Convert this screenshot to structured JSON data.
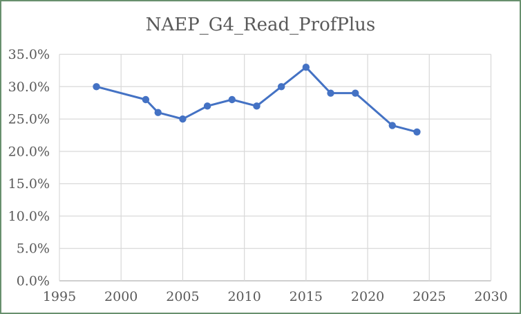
{
  "window": {
    "background": "#ffffff",
    "border_color": "#68906d"
  },
  "chart_data": {
    "type": "line",
    "title": "NAEP_G4_Read_ProfPlus",
    "x": [
      1998,
      2002,
      2003,
      2005,
      2007,
      2009,
      2011,
      2013,
      2015,
      2017,
      2019,
      2022,
      2024
    ],
    "values": [
      30,
      28,
      26,
      25,
      27,
      28,
      27,
      30,
      33,
      29,
      29,
      24,
      23
    ],
    "unit": "%",
    "xlim": [
      1995,
      2030
    ],
    "ylim": [
      0,
      35
    ],
    "x_tick_labels": [
      "1995",
      "2000",
      "2005",
      "2010",
      "2015",
      "2020",
      "2025",
      "2030"
    ],
    "x_tick_values": [
      1995,
      2000,
      2005,
      2010,
      2015,
      2020,
      2025,
      2030
    ],
    "y_tick_labels": [
      "0.0%",
      "5.0%",
      "10.0%",
      "15.0%",
      "20.0%",
      "25.0%",
      "30.0%",
      "35.0%"
    ],
    "y_tick_values": [
      0,
      5,
      10,
      15,
      20,
      25,
      30,
      35
    ],
    "grid": true,
    "legend": "none",
    "line_color": "#4472C4",
    "marker": "circle",
    "marker_color": "#4472C4",
    "gridline_color": "#D9D9D9",
    "axis_line_color": "#BFBFBF",
    "tick_label_color": "#595959",
    "title_color": "#595959"
  }
}
